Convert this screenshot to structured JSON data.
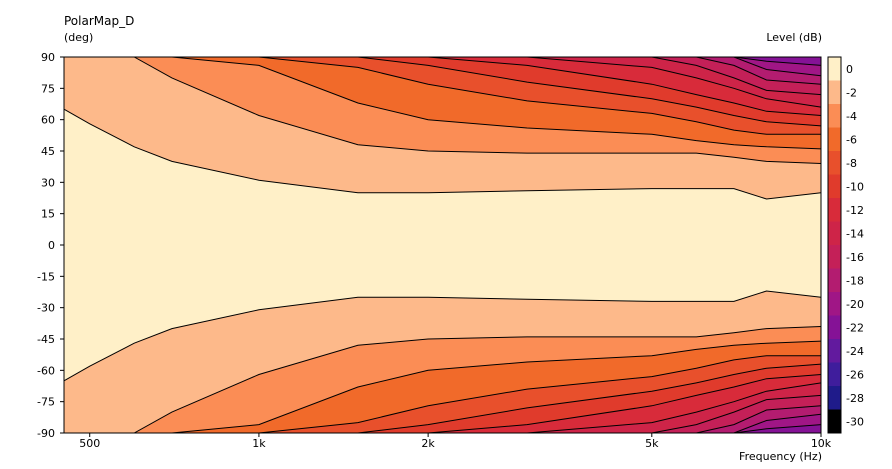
{
  "chart_data": {
    "type": "heatmap",
    "title": "PolarMap_D",
    "ylabel": "(deg)",
    "xlabel": "Frequency  (Hz)",
    "colorbar_label": "Level  (dB)",
    "x_scale": "log",
    "xlim": [
      450,
      10000
    ],
    "ylim": [
      -90,
      90
    ],
    "x_ticks": [
      {
        "value": 500,
        "label": "500"
      },
      {
        "value": 1000,
        "label": "1k"
      },
      {
        "value": 2000,
        "label": "2k"
      },
      {
        "value": 5000,
        "label": "5k"
      },
      {
        "value": 10000,
        "label": "10k"
      }
    ],
    "y_ticks": [
      90,
      75,
      60,
      45,
      30,
      15,
      0,
      -15,
      -30,
      -45,
      -60,
      -75,
      -90
    ],
    "levels": [
      0,
      -2,
      -4,
      -6,
      -8,
      -10,
      -12,
      -14,
      -16,
      -18,
      -20,
      -22,
      -24,
      -26,
      -28,
      -30
    ],
    "level_colors": [
      "#fff0c8",
      "#fdb98a",
      "#fb8d55",
      "#f16a2a",
      "#e8502c",
      "#e03b2c",
      "#d82b3a",
      "#ce2448",
      "#c42058",
      "#b31c70",
      "#a01686",
      "#851296",
      "#621a9e",
      "#3f1d9c",
      "#1f1b8a",
      "#000000"
    ],
    "contour_frequencies": [
      450,
      500,
      600,
      700,
      1000,
      1500,
      2000,
      3000,
      5000,
      6000,
      7000,
      8000,
      10000
    ],
    "contour_angles_deg": [
      {
        "level": -2,
        "angle": [
          65,
          58,
          47,
          40,
          31,
          25,
          25,
          26,
          27,
          27,
          27,
          22,
          25
        ]
      },
      {
        "level": -4,
        "angle": [
          90,
          90,
          90,
          80,
          62,
          48,
          45,
          44,
          44,
          44,
          42,
          40,
          39
        ]
      },
      {
        "level": -6,
        "angle": [
          90,
          90,
          90,
          90,
          86,
          68,
          60,
          56,
          53,
          50,
          48,
          47,
          46
        ]
      },
      {
        "level": -8,
        "angle": [
          90,
          90,
          90,
          90,
          90,
          85,
          77,
          69,
          63,
          59,
          55,
          53,
          53
        ]
      },
      {
        "level": -10,
        "angle": [
          90,
          90,
          90,
          90,
          90,
          90,
          86,
          78,
          70,
          66,
          62,
          59,
          57
        ]
      },
      {
        "level": -12,
        "angle": [
          90,
          90,
          90,
          90,
          90,
          90,
          90,
          86,
          77,
          72,
          68,
          64,
          62
        ]
      },
      {
        "level": -14,
        "angle": [
          90,
          90,
          90,
          90,
          90,
          90,
          90,
          90,
          85,
          80,
          75,
          70,
          66
        ]
      },
      {
        "level": -16,
        "angle": [
          90,
          90,
          90,
          90,
          90,
          90,
          90,
          90,
          90,
          86,
          80,
          74,
          72
        ]
      },
      {
        "level": -18,
        "angle": [
          90,
          90,
          90,
          90,
          90,
          90,
          90,
          90,
          90,
          90,
          86,
          79,
          77
        ]
      },
      {
        "level": -20,
        "angle": [
          90,
          90,
          90,
          90,
          90,
          90,
          90,
          90,
          90,
          90,
          90,
          84,
          81
        ]
      },
      {
        "level": -22,
        "angle": [
          90,
          90,
          90,
          90,
          90,
          90,
          90,
          90,
          90,
          90,
          90,
          88,
          86
        ]
      }
    ]
  }
}
